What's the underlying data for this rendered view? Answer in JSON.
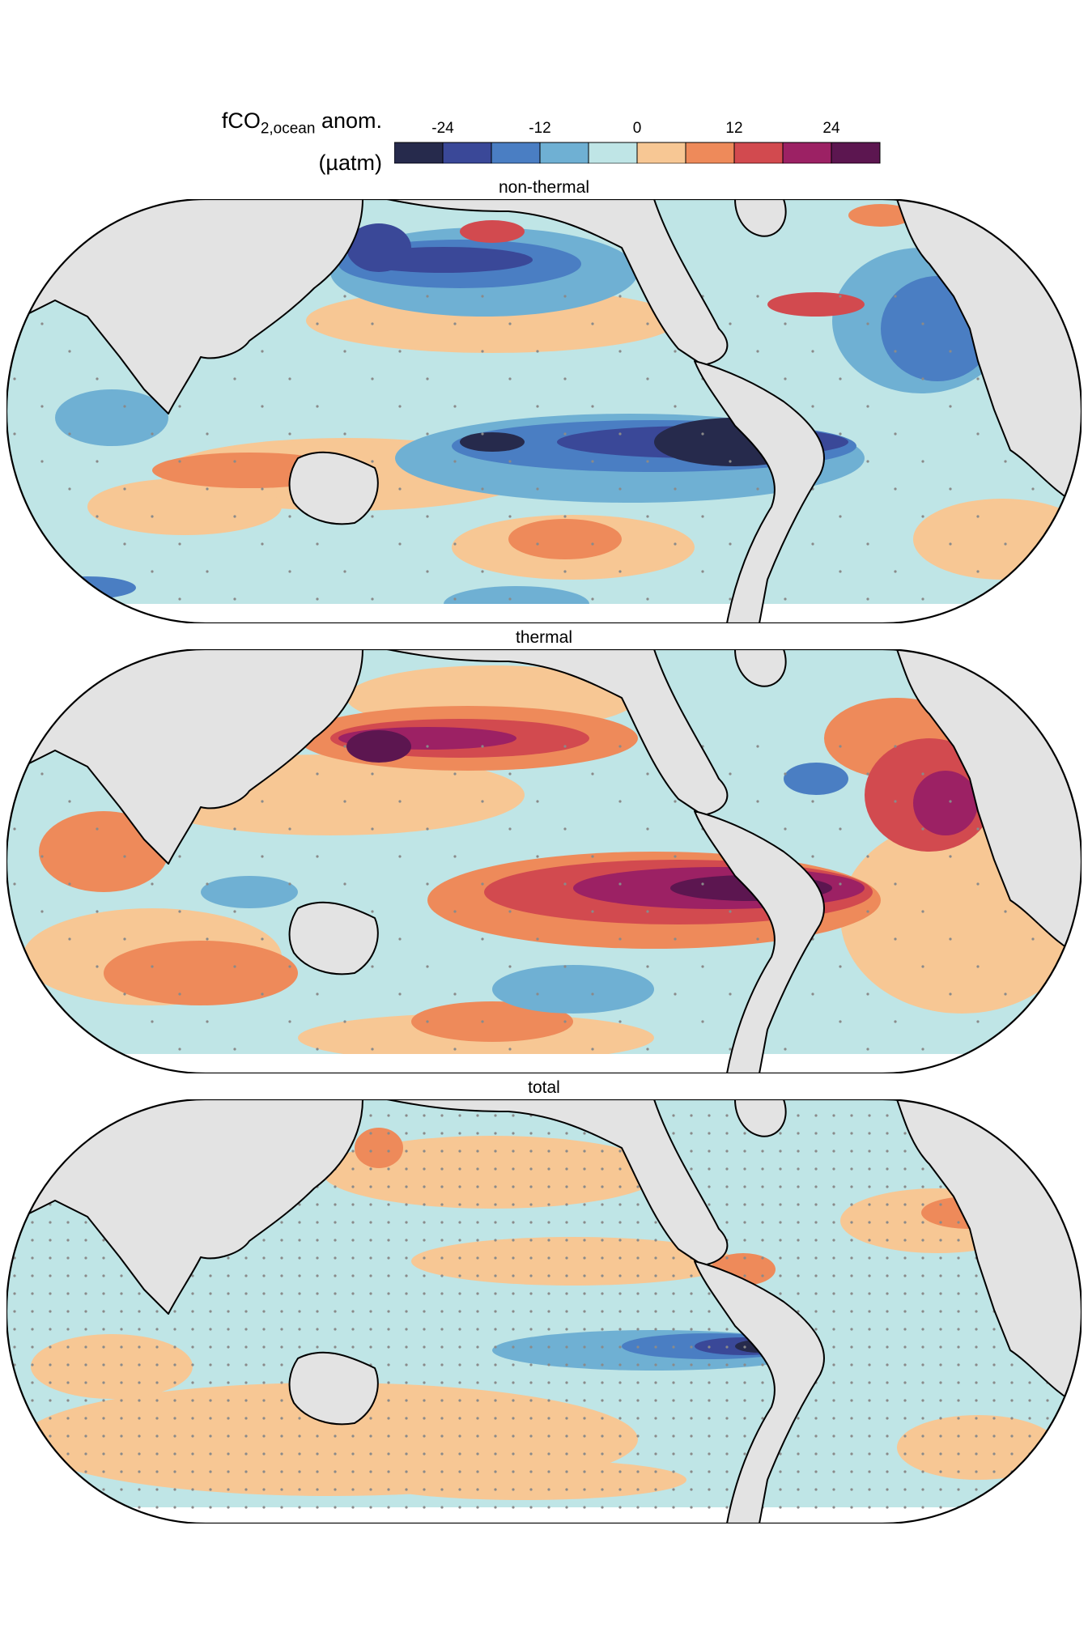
{
  "colorbar": {
    "title_main": "fCO",
    "title_sub": "2,ocean",
    "title_suffix": " anom.",
    "units": "(µatm)",
    "tick_labels": [
      "-24",
      "-12",
      "0",
      "12",
      "24"
    ],
    "colors": [
      "#262a4c",
      "#3a4898",
      "#4a7ec3",
      "#6fb0d3",
      "#bfe5e6",
      "#f7c794",
      "#ee8a5a",
      "#d24a4f",
      "#9c2164",
      "#5c1650"
    ]
  },
  "maps": [
    {
      "title": "non-thermal"
    },
    {
      "title": "thermal"
    },
    {
      "title": "total"
    }
  ],
  "legend_colors": {
    "land": "#e3e3e3",
    "coast": "#000000",
    "stipple": "#8a8a8a",
    "missing": "#ffffff"
  }
}
